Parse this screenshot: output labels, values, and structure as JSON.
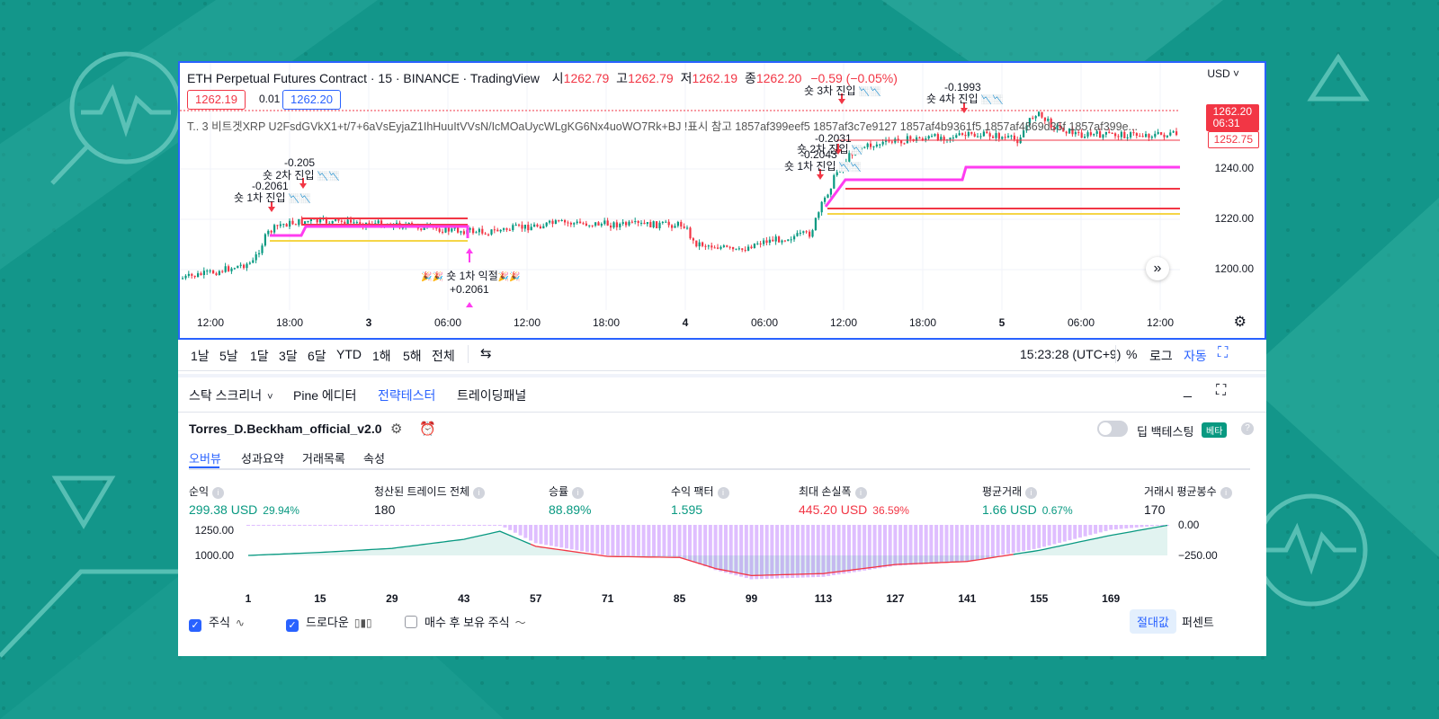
{
  "colors": {
    "background_teal": "#13968a",
    "accent_blue": "#2962ff",
    "up_green": "#089981",
    "down_red": "#f23645",
    "magenta": "#ff3cf0",
    "yellow": "#f5d547",
    "drawdown_purple": "#d9b3ff"
  },
  "chart": {
    "title": "ETH Perpetual Futures Contract · 15 · BINANCE · TradingView",
    "ohlc": {
      "o_label": "시",
      "o": "1262.79",
      "h_label": "고",
      "h": "1262.79",
      "l_label": "저",
      "l": "1262.19",
      "c_label": "종",
      "c": "1262.20",
      "change": "−0.59 (−0.05%)"
    },
    "sell_price": "1262.19",
    "spread": "0.01",
    "buy_price": "1262.20",
    "indicator_line": "T.. 3 비트겟XRP U2FsdGVkX1+t/7+6aVsEyjaZ1IhHuuItVVsN/IcMOaUycWLgKG6Nx4uoWO7Rk+BJ !표시 참고 1857af399eef5 1857af3c7e9127 1857af4b9361f5 1857af4869d35f 1857af399e...",
    "currency": "USD",
    "price_axis": [
      "1240.00",
      "1220.00",
      "1200.00"
    ],
    "last_price": "1262.20",
    "countdown": "06:31",
    "line_price": "1252.75",
    "time_axis": [
      "12:00",
      "18:00",
      "3",
      "06:00",
      "12:00",
      "18:00",
      "4",
      "06:00",
      "12:00",
      "18:00",
      "5",
      "06:00",
      "12:00"
    ],
    "annotations": {
      "a1_val": "-0.2061",
      "a1_label": "숏 1차 진입",
      "a2_val": "-0.205",
      "a2_label": "숏 2차 진입",
      "exit_label": "숏 1차 익절",
      "exit_val": "+0.2061",
      "b1_label": "숏 1차 진입",
      "b1_val": "-0.2043",
      "b2_label": "숏 2차 진입",
      "b2_val": "-0.2031",
      "b3_label": "숏 3차 진입",
      "b4_val": "-0.1993",
      "b4_label": "숏 4차 진입"
    }
  },
  "toolbar": {
    "timeframes": [
      "1날",
      "5날",
      "1달",
      "3달",
      "6달",
      "YTD",
      "1해",
      "5해",
      "전체"
    ],
    "clock": "15:23:28 (UTC+9)",
    "pct": "%",
    "log": "로그",
    "auto": "자동"
  },
  "panel": {
    "tabs": [
      "스탁 스크리너",
      "Pine 에디터",
      "전략테스터",
      "트레이딩패널"
    ],
    "strategy_name": "Torres_D.Beckham_official_v2.0",
    "deep_backtest": "딥 백테스팅",
    "beta": "베타",
    "subtabs": [
      "오버뷰",
      "성과요약",
      "거래목록",
      "속성"
    ]
  },
  "metrics": [
    {
      "label": "순익",
      "value": "299.38 USD",
      "pct": "29.94%",
      "tone": "green"
    },
    {
      "label": "청산된 트레이드 전체",
      "value": "180",
      "pct": "",
      "tone": "dark"
    },
    {
      "label": "승률",
      "value": "88.89%",
      "pct": "",
      "tone": "green"
    },
    {
      "label": "수익 팩터",
      "value": "1.595",
      "pct": "",
      "tone": "green"
    },
    {
      "label": "최대 손실폭",
      "value": "445.20 USD",
      "pct": "36.59%",
      "tone": "neg"
    },
    {
      "label": "평균거래",
      "value": "1.66 USD",
      "pct": "0.67%",
      "tone": "green"
    },
    {
      "label": "거래시 평균봉수",
      "value": "170",
      "pct": "",
      "tone": "dark"
    }
  ],
  "chart_data": {
    "type": "area",
    "x_ticks": [
      "1",
      "15",
      "29",
      "43",
      "57",
      "71",
      "85",
      "99",
      "113",
      "127",
      "141",
      "155",
      "169"
    ],
    "left_axis_ticks": [
      "1250.00",
      "1000.00"
    ],
    "right_axis_ticks": [
      "0.00",
      "−250.00"
    ],
    "series": [
      {
        "name": "주식",
        "type": "line",
        "x": [
          1,
          15,
          29,
          43,
          50,
          57,
          71,
          85,
          92,
          99,
          113,
          127,
          141,
          155,
          169,
          180
        ],
        "values": [
          1000,
          1030,
          1070,
          1160,
          1240,
          1090,
          990,
          980,
          870,
          800,
          820,
          910,
          940,
          1050,
          1200,
          1299.38
        ]
      },
      {
        "name": "드로다운",
        "type": "bar",
        "x": [
          1,
          15,
          29,
          43,
          50,
          57,
          71,
          85,
          92,
          99,
          113,
          127,
          141,
          155,
          169,
          180
        ],
        "values": [
          -5,
          -3,
          -4,
          -2,
          0,
          -150,
          -250,
          -260,
          -370,
          -445.2,
          -425,
          -335,
          -300,
          -190,
          -40,
          0
        ]
      }
    ],
    "legend": [
      {
        "label": "주식",
        "checked": true
      },
      {
        "label": "드로다운",
        "checked": true
      },
      {
        "label": "매수 후 보유 주식",
        "checked": false
      }
    ],
    "mode_buttons": [
      "절대값",
      "퍼센트"
    ]
  }
}
